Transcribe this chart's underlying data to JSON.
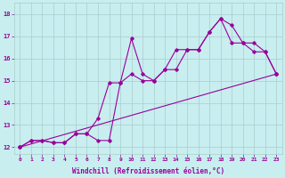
{
  "title": "",
  "xlabel": "Windchill (Refroidissement éolien,°C)",
  "ylabel": "",
  "xlim": [
    -0.5,
    23.5
  ],
  "ylim": [
    11.7,
    18.5
  ],
  "background_color": "#c8eef0",
  "grid_color": "#aacccc",
  "line_color": "#990099",
  "xticks": [
    0,
    1,
    2,
    3,
    4,
    5,
    6,
    7,
    8,
    9,
    10,
    11,
    12,
    13,
    14,
    15,
    16,
    17,
    18,
    19,
    20,
    21,
    22,
    23
  ],
  "yticks": [
    12,
    13,
    14,
    15,
    16,
    17,
    18
  ],
  "line1_x": [
    0,
    1,
    2,
    3,
    4,
    5,
    6,
    7,
    8,
    9,
    10,
    11,
    12,
    13,
    14,
    15,
    16,
    17,
    18,
    19,
    20,
    21,
    22,
    23
  ],
  "line1_y": [
    12.0,
    12.3,
    12.3,
    12.2,
    12.2,
    12.6,
    12.6,
    12.3,
    12.3,
    14.9,
    16.9,
    15.3,
    15.0,
    15.5,
    15.5,
    16.4,
    16.4,
    17.2,
    17.8,
    16.7,
    16.7,
    16.3,
    16.3,
    15.3
  ],
  "line2_x": [
    0,
    1,
    2,
    3,
    4,
    5,
    6,
    7,
    8,
    9,
    10,
    11,
    12,
    13,
    14,
    15,
    16,
    17,
    18,
    19,
    20,
    21,
    22,
    23
  ],
  "line2_y": [
    12.0,
    12.3,
    12.3,
    12.2,
    12.2,
    12.6,
    12.6,
    13.3,
    14.9,
    14.9,
    15.3,
    15.0,
    15.0,
    15.5,
    16.4,
    16.4,
    16.4,
    17.2,
    17.8,
    17.5,
    16.7,
    16.7,
    16.3,
    15.3
  ],
  "line3_x": [
    0,
    23
  ],
  "line3_y": [
    12.0,
    15.3
  ],
  "figsize": [
    3.2,
    2.0
  ],
  "dpi": 100,
  "xlabel_fontsize": 5.5,
  "tick_fontsize": 4.5,
  "ytick_fontsize": 5.0,
  "marker_size": 1.8,
  "line_width": 0.8
}
